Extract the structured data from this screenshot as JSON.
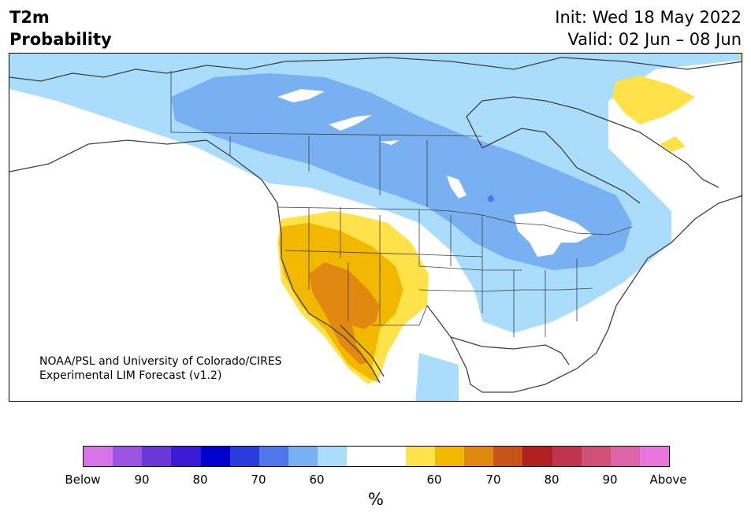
{
  "header": {
    "variable": "T2m",
    "product": "Probability",
    "init": "Init: Wed 18 May 2022",
    "valid": "Valid: 02 Jun – 08 Jun"
  },
  "map": {
    "credit_line1": "NOAA/PSL and University of Colorado/CIRES",
    "credit_line2": "Experimental LIM Forecast (v1.2)"
  },
  "colorbar": {
    "colors": [
      "#d674e8",
      "#9b55e0",
      "#6b38d8",
      "#3a1ad4",
      "#0000cc",
      "#2a3cdc",
      "#5078e8",
      "#78b0f2",
      "#aadcfc",
      "#ffffff",
      "#ffffff",
      "#ffe24a",
      "#f2b800",
      "#e08810",
      "#c85418",
      "#b02020",
      "#c03450",
      "#d0507a",
      "#dc64a8",
      "#e876dc"
    ],
    "tick_labels": [
      "Below",
      "90",
      "80",
      "70",
      "60",
      "60",
      "70",
      "80",
      "90",
      "Above"
    ],
    "unit": "%"
  },
  "legend_colors": {
    "below_60": "#aadcfc",
    "below_70": "#78b0f2",
    "below_80": "#5078e8",
    "above_60": "#ffe24a",
    "above_70": "#f2b800",
    "above_80": "#e08810"
  }
}
